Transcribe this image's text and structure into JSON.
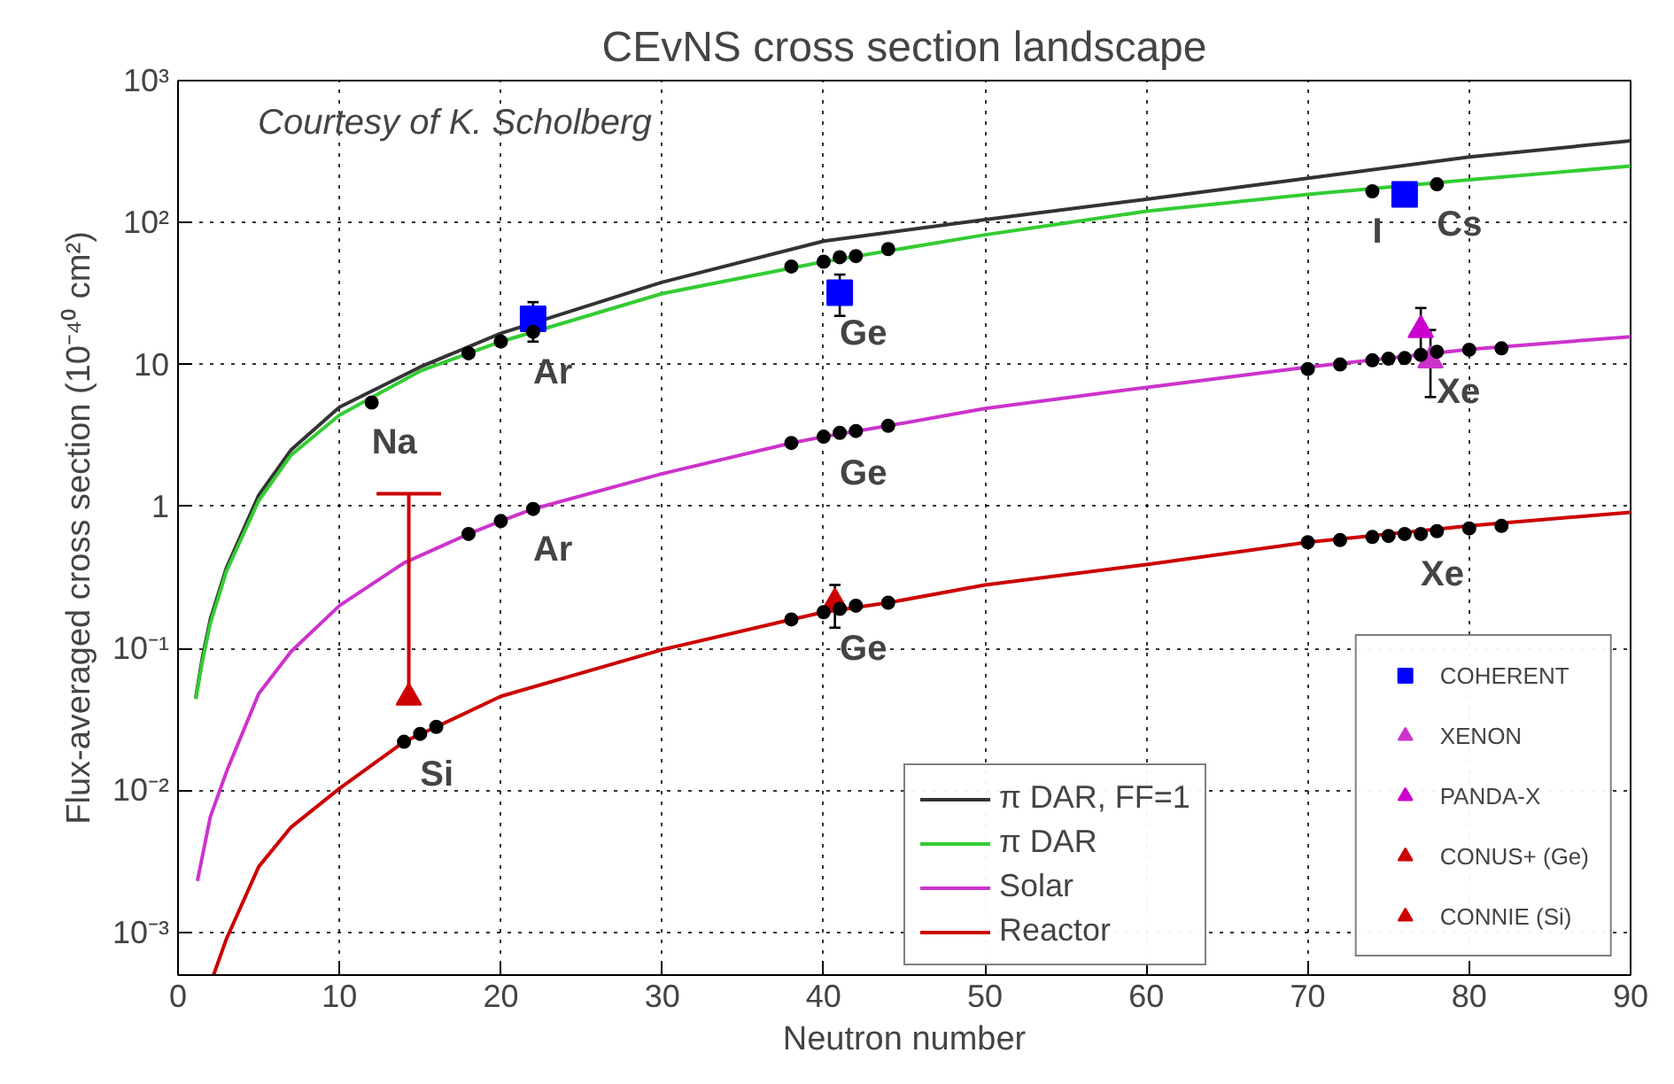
{
  "chart_data": {
    "type": "line",
    "title": "CEvNS cross section landscape",
    "xlabel": "Neutron number",
    "ylabel": "Flux-averaged cross section (10⁻⁴⁰ cm²)",
    "xlim": [
      0,
      90
    ],
    "ylim": [
      0.0005,
      1000
    ],
    "log": "y",
    "grid": true,
    "legend": "bottom right",
    "line_style": "solid",
    "xticks": [
      0,
      10,
      20,
      30,
      40,
      50,
      60,
      70,
      80,
      90
    ],
    "yticks": [
      {
        "value": 0.001,
        "label": "10⁻³"
      },
      {
        "value": 0.01,
        "label": "10⁻²"
      },
      {
        "value": 0.1,
        "label": "10⁻¹"
      },
      1,
      10,
      {
        "value": 100,
        "label": "10²"
      },
      {
        "value": 1000,
        "label": "10³"
      }
    ],
    "series": [
      {
        "name": "π DAR, FF=1",
        "color": "#333333",
        "x": [
          1.1,
          1.5,
          2,
          3,
          5,
          7,
          10,
          15,
          20,
          30,
          40,
          50,
          60,
          70,
          80,
          90
        ],
        "values": [
          0.045,
          0.085,
          0.16,
          0.37,
          1.2,
          2.5,
          5.0,
          9.6,
          16.6,
          38,
          74,
          105,
          146,
          205,
          290,
          376
        ]
      },
      {
        "name": "π DAR",
        "color": "#33cc33",
        "x": [
          1.1,
          1.5,
          2,
          3,
          5,
          7,
          10,
          15,
          20,
          30,
          40,
          50,
          60,
          70,
          80,
          90
        ],
        "values": [
          0.044,
          0.08,
          0.15,
          0.35,
          1.1,
          2.3,
          4.4,
          9,
          14.5,
          31.6,
          53,
          82,
          120,
          158,
          200,
          250
        ]
      },
      {
        "name": "Solar",
        "color": "#cc33cc",
        "x": [
          1.2,
          2,
          3,
          5,
          7,
          10,
          14,
          18,
          20,
          22,
          30,
          38,
          40,
          44,
          50,
          60,
          70,
          80,
          90
        ],
        "values": [
          0.0023,
          0.0065,
          0.0135,
          0.048,
          0.095,
          0.2,
          0.4,
          0.64,
          0.79,
          0.96,
          1.7,
          2.8,
          3.1,
          3.7,
          4.9,
          6.9,
          9.6,
          12.8,
          15.7
        ]
      },
      {
        "name": "Reactor",
        "color": "#cc0000",
        "x": [
          2.2,
          3,
          5,
          7,
          10,
          14,
          16,
          20,
          30,
          38,
          40,
          44,
          50,
          60,
          70,
          80,
          90
        ],
        "values": [
          0.0005,
          0.0009,
          0.0029,
          0.0055,
          0.0103,
          0.022,
          0.028,
          0.046,
          0.098,
          0.16,
          0.18,
          0.21,
          0.28,
          0.39,
          0.56,
          0.73,
          0.91
        ]
      },
      {
        "type": "scatter",
        "color": "#000000",
        "marker": "circle",
        "x": [
          12,
          18,
          20,
          22,
          38,
          40,
          41,
          42,
          44,
          74,
          78,
          18,
          20,
          22,
          38,
          40,
          41,
          42,
          44,
          70,
          72,
          74,
          75,
          76,
          77,
          78,
          80,
          82,
          14,
          15,
          16,
          38,
          40,
          41,
          42,
          44,
          70,
          72,
          74,
          75,
          76,
          77,
          78,
          80,
          82
        ],
        "values": [
          5.4,
          12,
          14.5,
          17,
          49,
          53,
          57,
          58,
          65,
          166,
          186,
          0.64,
          0.79,
          0.96,
          2.8,
          3.1,
          3.3,
          3.4,
          3.7,
          9.3,
          10,
          10.7,
          11,
          11.1,
          11.7,
          12.3,
          12.7,
          13,
          0.022,
          0.025,
          0.028,
          0.16,
          0.18,
          0.19,
          0.2,
          0.21,
          0.56,
          0.58,
          0.61,
          0.62,
          0.64,
          0.64,
          0.67,
          0.7,
          0.73
        ]
      },
      {
        "name": "COHERENT",
        "type": "scatter",
        "color": "#0000ff",
        "marker": "square",
        "x": [
          22,
          41,
          76
        ],
        "values": [
          21,
          32,
          158
        ],
        "errors": [
          [
            14.5,
            27.5
          ],
          [
            22,
            43
          ],
          null
        ]
      },
      {
        "name": "XENON",
        "type": "scatter",
        "color": "#cc33cc",
        "marker": "triangle",
        "x": [
          77.6
        ],
        "values": [
          10.7
        ],
        "errors": [
          [
            5.9,
            17.5
          ]
        ]
      },
      {
        "name": "PANDA-X",
        "type": "scatter",
        "color": "#cc00cc",
        "marker": "triangle",
        "x": [
          77
        ],
        "values": [
          17.5
        ],
        "errors": [
          [
            12,
            25
          ]
        ]
      },
      {
        "name": "CONUS+ (Ge)",
        "type": "scatter",
        "color": "#cc0000",
        "marker": "triangle",
        "x": [
          40.7
        ],
        "values": [
          0.21
        ],
        "errors": [
          [
            0.14,
            0.28
          ]
        ]
      },
      {
        "name": "CONNIE (Si)",
        "type": "scatter",
        "color": "#cc0000",
        "marker": "triangle",
        "x": [
          14.3
        ],
        "values": [
          0.045
        ],
        "errors": [
          [
            0.045,
            1.23
          ]
        ]
      }
    ],
    "annotations": [
      "Courtesy of K. Scholberg",
      {
        "text": "Na",
        "x": 12,
        "y": 5.4
      },
      {
        "text": "Ar",
        "x": 22,
        "y": 17
      },
      {
        "text": "Ge",
        "x": 41,
        "y": 32
      },
      {
        "text": "I",
        "x": 74,
        "y": 166
      },
      {
        "text": "Cs",
        "x": 78,
        "y": 186
      },
      {
        "text": "Ge",
        "x": 41,
        "y": 3.3
      },
      {
        "text": "Ar",
        "x": 22,
        "y": 0.96
      },
      {
        "text": "Xe",
        "x": 78,
        "y": 12.3
      },
      {
        "text": "Ge",
        "x": 41,
        "y": 0.19
      },
      {
        "text": "Xe",
        "x": 77,
        "y": 0.64
      },
      {
        "text": "Si",
        "x": 15,
        "y": 0.025
      }
    ]
  }
}
